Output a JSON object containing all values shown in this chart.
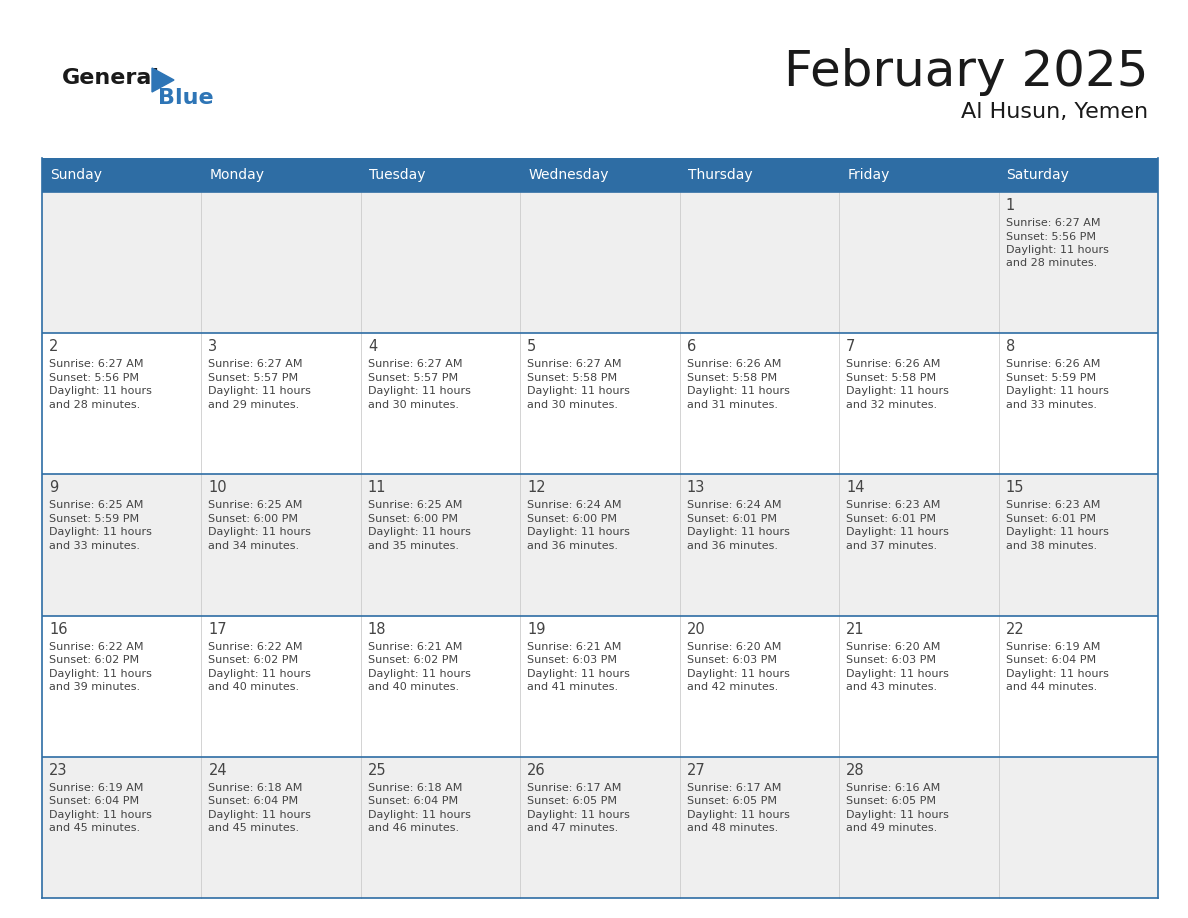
{
  "title": "February 2025",
  "subtitle": "Al Husun, Yemen",
  "header_bg_color": "#2E6DA4",
  "header_text_color": "#FFFFFF",
  "days_of_week": [
    "Sunday",
    "Monday",
    "Tuesday",
    "Wednesday",
    "Thursday",
    "Friday",
    "Saturday"
  ],
  "cell_bg_shaded": "#EFEFEF",
  "cell_bg_white": "#FFFFFF",
  "cell_border_color": "#2E6DA4",
  "day_number_color": "#444444",
  "info_text_color": "#444444",
  "calendar_data": {
    "1": {
      "sunrise": "6:27 AM",
      "sunset": "5:56 PM",
      "daylight": "11 hours",
      "daylight2": "and 28 minutes."
    },
    "2": {
      "sunrise": "6:27 AM",
      "sunset": "5:56 PM",
      "daylight": "11 hours",
      "daylight2": "and 28 minutes."
    },
    "3": {
      "sunrise": "6:27 AM",
      "sunset": "5:57 PM",
      "daylight": "11 hours",
      "daylight2": "and 29 minutes."
    },
    "4": {
      "sunrise": "6:27 AM",
      "sunset": "5:57 PM",
      "daylight": "11 hours",
      "daylight2": "and 30 minutes."
    },
    "5": {
      "sunrise": "6:27 AM",
      "sunset": "5:58 PM",
      "daylight": "11 hours",
      "daylight2": "and 30 minutes."
    },
    "6": {
      "sunrise": "6:26 AM",
      "sunset": "5:58 PM",
      "daylight": "11 hours",
      "daylight2": "and 31 minutes."
    },
    "7": {
      "sunrise": "6:26 AM",
      "sunset": "5:58 PM",
      "daylight": "11 hours",
      "daylight2": "and 32 minutes."
    },
    "8": {
      "sunrise": "6:26 AM",
      "sunset": "5:59 PM",
      "daylight": "11 hours",
      "daylight2": "and 33 minutes."
    },
    "9": {
      "sunrise": "6:25 AM",
      "sunset": "5:59 PM",
      "daylight": "11 hours",
      "daylight2": "and 33 minutes."
    },
    "10": {
      "sunrise": "6:25 AM",
      "sunset": "6:00 PM",
      "daylight": "11 hours",
      "daylight2": "and 34 minutes."
    },
    "11": {
      "sunrise": "6:25 AM",
      "sunset": "6:00 PM",
      "daylight": "11 hours",
      "daylight2": "and 35 minutes."
    },
    "12": {
      "sunrise": "6:24 AM",
      "sunset": "6:00 PM",
      "daylight": "11 hours",
      "daylight2": "and 36 minutes."
    },
    "13": {
      "sunrise": "6:24 AM",
      "sunset": "6:01 PM",
      "daylight": "11 hours",
      "daylight2": "and 36 minutes."
    },
    "14": {
      "sunrise": "6:23 AM",
      "sunset": "6:01 PM",
      "daylight": "11 hours",
      "daylight2": "and 37 minutes."
    },
    "15": {
      "sunrise": "6:23 AM",
      "sunset": "6:01 PM",
      "daylight": "11 hours",
      "daylight2": "and 38 minutes."
    },
    "16": {
      "sunrise": "6:22 AM",
      "sunset": "6:02 PM",
      "daylight": "11 hours",
      "daylight2": "and 39 minutes."
    },
    "17": {
      "sunrise": "6:22 AM",
      "sunset": "6:02 PM",
      "daylight": "11 hours",
      "daylight2": "and 40 minutes."
    },
    "18": {
      "sunrise": "6:21 AM",
      "sunset": "6:02 PM",
      "daylight": "11 hours",
      "daylight2": "and 40 minutes."
    },
    "19": {
      "sunrise": "6:21 AM",
      "sunset": "6:03 PM",
      "daylight": "11 hours",
      "daylight2": "and 41 minutes."
    },
    "20": {
      "sunrise": "6:20 AM",
      "sunset": "6:03 PM",
      "daylight": "11 hours",
      "daylight2": "and 42 minutes."
    },
    "21": {
      "sunrise": "6:20 AM",
      "sunset": "6:03 PM",
      "daylight": "11 hours",
      "daylight2": "and 43 minutes."
    },
    "22": {
      "sunrise": "6:19 AM",
      "sunset": "6:04 PM",
      "daylight": "11 hours",
      "daylight2": "and 44 minutes."
    },
    "23": {
      "sunrise": "6:19 AM",
      "sunset": "6:04 PM",
      "daylight": "11 hours",
      "daylight2": "and 45 minutes."
    },
    "24": {
      "sunrise": "6:18 AM",
      "sunset": "6:04 PM",
      "daylight": "11 hours",
      "daylight2": "and 45 minutes."
    },
    "25": {
      "sunrise": "6:18 AM",
      "sunset": "6:04 PM",
      "daylight": "11 hours",
      "daylight2": "and 46 minutes."
    },
    "26": {
      "sunrise": "6:17 AM",
      "sunset": "6:05 PM",
      "daylight": "11 hours",
      "daylight2": "and 47 minutes."
    },
    "27": {
      "sunrise": "6:17 AM",
      "sunset": "6:05 PM",
      "daylight": "11 hours",
      "daylight2": "and 48 minutes."
    },
    "28": {
      "sunrise": "6:16 AM",
      "sunset": "6:05 PM",
      "daylight": "11 hours",
      "daylight2": "and 49 minutes."
    }
  },
  "logo_general_color": "#1a1a1a",
  "logo_blue_color": "#2E75B6",
  "logo_triangle_color": "#2E75B6",
  "page_bg": "#FFFFFF"
}
